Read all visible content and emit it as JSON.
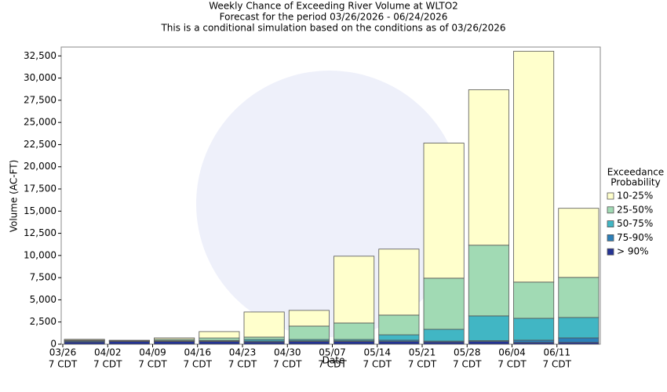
{
  "chart_data": {
    "type": "stacked_bar",
    "title": [
      "Weekly Chance of Exceeding River Volume at WLTO2",
      "Forecast for the period 03/26/2026 - 06/24/2026",
      "This is a conditional simulation based on the conditions as of 03/26/2026"
    ],
    "x_label": "Date",
    "y_label": "Volume (AC-FT)",
    "categories": [
      "03/26",
      "04/02",
      "04/09",
      "04/16",
      "04/23",
      "04/30",
      "05/07",
      "05/14",
      "05/21",
      "05/28",
      "06/04",
      "06/11"
    ],
    "category_sublabels": [
      "7 CDT",
      "7 CDT",
      "7 CDT",
      "7 CDT",
      "7 CDT",
      "7 CDT",
      "7 CDT",
      "7 CDT",
      "7 CDT",
      "7 CDT",
      "7 CDT",
      "7 CDT"
    ],
    "legend_title": [
      "Exceedance",
      "Probability"
    ],
    "series": [
      {
        "name": "> 90%",
        "color": "#253494",
        "values": [
          250,
          300,
          300,
          300,
          250,
          300,
          300,
          300,
          250,
          300,
          200,
          200
        ]
      },
      {
        "name": "75-90%",
        "color": "#2c7fb8",
        "values": [
          100,
          60,
          50,
          50,
          100,
          80,
          80,
          150,
          100,
          100,
          250,
          510
        ]
      },
      {
        "name": "50-75%",
        "color": "#41b6c4",
        "values": [
          50,
          30,
          50,
          80,
          180,
          150,
          150,
          610,
          1330,
          2790,
          2470,
          2300
        ]
      },
      {
        "name": "25-50%",
        "color": "#a1dab4",
        "values": [
          50,
          20,
          150,
          270,
          270,
          1510,
          1860,
          2220,
          5760,
          7970,
          4080,
          4520
        ]
      },
      {
        "name": "10-25%",
        "color": "#ffffcc",
        "values": [
          100,
          30,
          160,
          720,
          2830,
          1770,
          7530,
          7440,
          15230,
          17530,
          26030,
          7790
        ]
      }
    ],
    "ylim": [
      0,
      33500
    ],
    "yticks": [
      0,
      {
        "value": 2500,
        "label": "2,500"
      },
      {
        "value": 5000,
        "label": "5,000"
      },
      {
        "value": 7500,
        "label": "7,500"
      },
      {
        "value": 10000,
        "label": "10,000"
      },
      {
        "value": 12500,
        "label": "12,500"
      },
      {
        "value": 15000,
        "label": "15,000"
      },
      {
        "value": 17500,
        "label": "17,500"
      },
      {
        "value": 20000,
        "label": "20,000"
      },
      {
        "value": 22500,
        "label": "22,500"
      },
      {
        "value": 25000,
        "label": "25,000"
      },
      {
        "value": 27500,
        "label": "27,500"
      },
      {
        "value": 30000,
        "label": "30,000"
      },
      {
        "value": 32500,
        "label": "32,500"
      }
    ],
    "grid": false
  }
}
